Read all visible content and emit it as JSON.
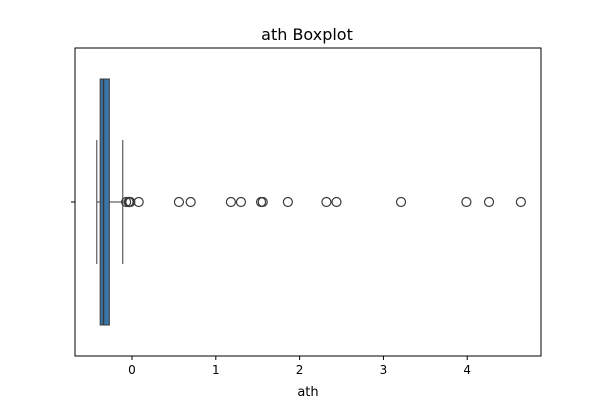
{
  "chart_data": {
    "type": "box",
    "orientation": "horizontal",
    "title": "ath Boxplot",
    "xlabel": "ath",
    "ylabel": "",
    "xlim": [
      -0.68,
      4.88
    ],
    "xticks": [
      0,
      1,
      2,
      3,
      4
    ],
    "xtick_labels": [
      "0",
      "1",
      "2",
      "3",
      "4"
    ],
    "series": [
      {
        "whisker_low": -0.42,
        "q1": -0.38,
        "median": -0.34,
        "q3": -0.27,
        "whisker_high": -0.11,
        "outliers": [
          -0.07,
          -0.04,
          -0.03,
          -0.02,
          0.08,
          0.56,
          0.7,
          1.18,
          1.3,
          1.54,
          1.56,
          1.86,
          2.32,
          2.44,
          3.21,
          3.99,
          4.26,
          4.64
        ]
      }
    ],
    "colors": {
      "box_fill": "#3a75a8",
      "line": "#3a3a3a",
      "outlier_edge": "#3a3a3a"
    },
    "grid": false,
    "legend": "none"
  }
}
